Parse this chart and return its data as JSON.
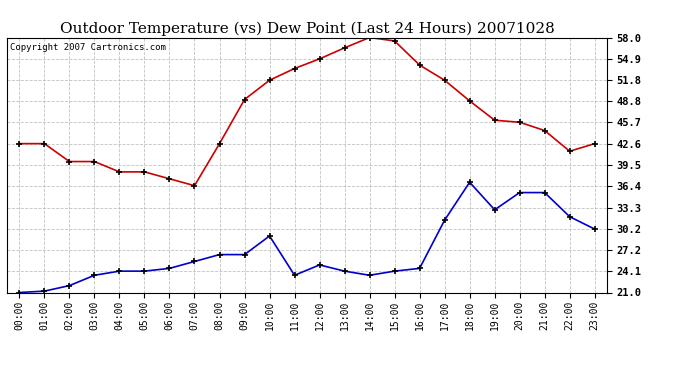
{
  "title": "Outdoor Temperature (vs) Dew Point (Last 24 Hours) 20071028",
  "copyright": "Copyright 2007 Cartronics.com",
  "x_labels": [
    "00:00",
    "01:00",
    "02:00",
    "03:00",
    "04:00",
    "05:00",
    "06:00",
    "07:00",
    "08:00",
    "09:00",
    "10:00",
    "11:00",
    "12:00",
    "13:00",
    "14:00",
    "15:00",
    "16:00",
    "17:00",
    "18:00",
    "19:00",
    "20:00",
    "21:00",
    "22:00",
    "23:00"
  ],
  "temp_values": [
    42.6,
    42.6,
    40.0,
    40.0,
    38.5,
    38.5,
    37.5,
    36.5,
    42.6,
    49.0,
    51.8,
    53.5,
    54.9,
    56.5,
    58.0,
    57.5,
    54.0,
    51.8,
    48.8,
    46.0,
    45.7,
    44.5,
    41.5,
    42.6
  ],
  "dew_values": [
    21.0,
    21.2,
    22.0,
    23.5,
    24.1,
    24.1,
    24.5,
    25.5,
    26.5,
    26.5,
    29.2,
    23.5,
    25.0,
    24.1,
    23.5,
    24.1,
    24.5,
    31.5,
    37.0,
    33.0,
    35.5,
    35.5,
    32.0,
    30.2
  ],
  "temp_color": "#cc0000",
  "dew_color": "#0000cc",
  "bg_color": "#ffffff",
  "plot_bg_color": "#ffffff",
  "grid_color": "#bbbbbb",
  "yticks": [
    21.0,
    24.1,
    27.2,
    30.2,
    33.3,
    36.4,
    39.5,
    42.6,
    45.7,
    48.8,
    51.8,
    54.9,
    58.0
  ],
  "ymin": 21.0,
  "ymax": 58.0,
  "title_fontsize": 11,
  "copyright_fontsize": 6.5,
  "tick_fontsize": 7,
  "ytick_fontsize": 7.5
}
